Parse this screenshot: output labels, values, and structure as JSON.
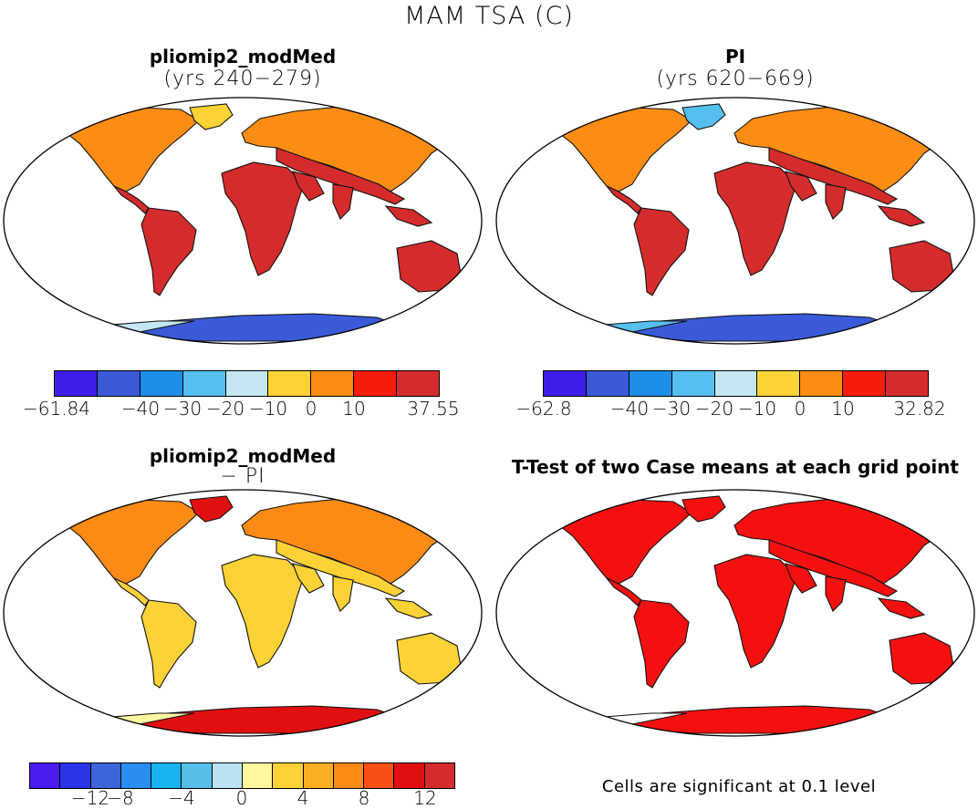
{
  "title": "MAM TSA (C)",
  "panels": {
    "top_left": {
      "title": "pliomip2_modMed",
      "subtitle": "(yrs 240−279)"
    },
    "top_right": {
      "title": "PI",
      "subtitle": "(yrs 620−669)"
    },
    "bottom_left": {
      "title": "pliomip2_modMed",
      "subtitle": "− PI"
    },
    "bottom_right": {
      "title": "T-Test of two Case means at each grid point"
    }
  },
  "colorbars": {
    "top_left": {
      "colors": [
        "#3c1ee6",
        "#3a5ad8",
        "#1e8ee8",
        "#55bff0",
        "#c3e6f2",
        "#fcd236",
        "#fb8d14",
        "#f51c0e",
        "#d42c2c"
      ],
      "labels": [
        "−61.84",
        "−40",
        "−30",
        "−20",
        "−10",
        "0",
        "10",
        "37.55"
      ]
    },
    "top_right": {
      "colors": [
        "#3c1ee6",
        "#3a5ad8",
        "#1e8ee8",
        "#55bff0",
        "#c3e6f2",
        "#fcd236",
        "#fb8d14",
        "#f51c0e",
        "#d42c2c"
      ],
      "labels": [
        "−62.8",
        "−40",
        "−30",
        "−20",
        "−10",
        "0",
        "10",
        "32.82"
      ]
    },
    "bottom_left": {
      "colors": [
        "#4a1cf0",
        "#2a34e8",
        "#3d64d8",
        "#2a8ef0",
        "#17b2f0",
        "#55bde8",
        "#b9e2f2",
        "#fff7a0",
        "#fcd236",
        "#fbb024",
        "#fb8b14",
        "#f85014",
        "#e01010",
        "#d42c2c"
      ],
      "labels": [
        "−12",
        "−8",
        "−4",
        "0",
        "4",
        "8",
        "12"
      ]
    }
  },
  "significance_note": "Cells are significant at 0.1 level",
  "fills": {
    "top_left": {
      "land": "#d42c2c",
      "north": "#fb8d14",
      "arctic": "#fcd236",
      "antarctic": "#3a5ad8",
      "ant_edge": "#c3e6f2"
    },
    "top_right": {
      "land": "#d42c2c",
      "north": "#fb8d14",
      "arctic": "#55bff0",
      "antarctic": "#3a5ad8",
      "ant_edge": "#55bff0"
    },
    "bottom_left": {
      "land": "#fcd236",
      "north": "#fb8b14",
      "arctic": "#e01010",
      "antarctic": "#e01010",
      "ant_edge": "#fff7a0"
    },
    "bottom_right": {
      "land": "#f51010",
      "north": "#f51010",
      "arctic": "#f51010",
      "antarctic": "#f51010",
      "ant_edge": "#ffffff"
    }
  }
}
